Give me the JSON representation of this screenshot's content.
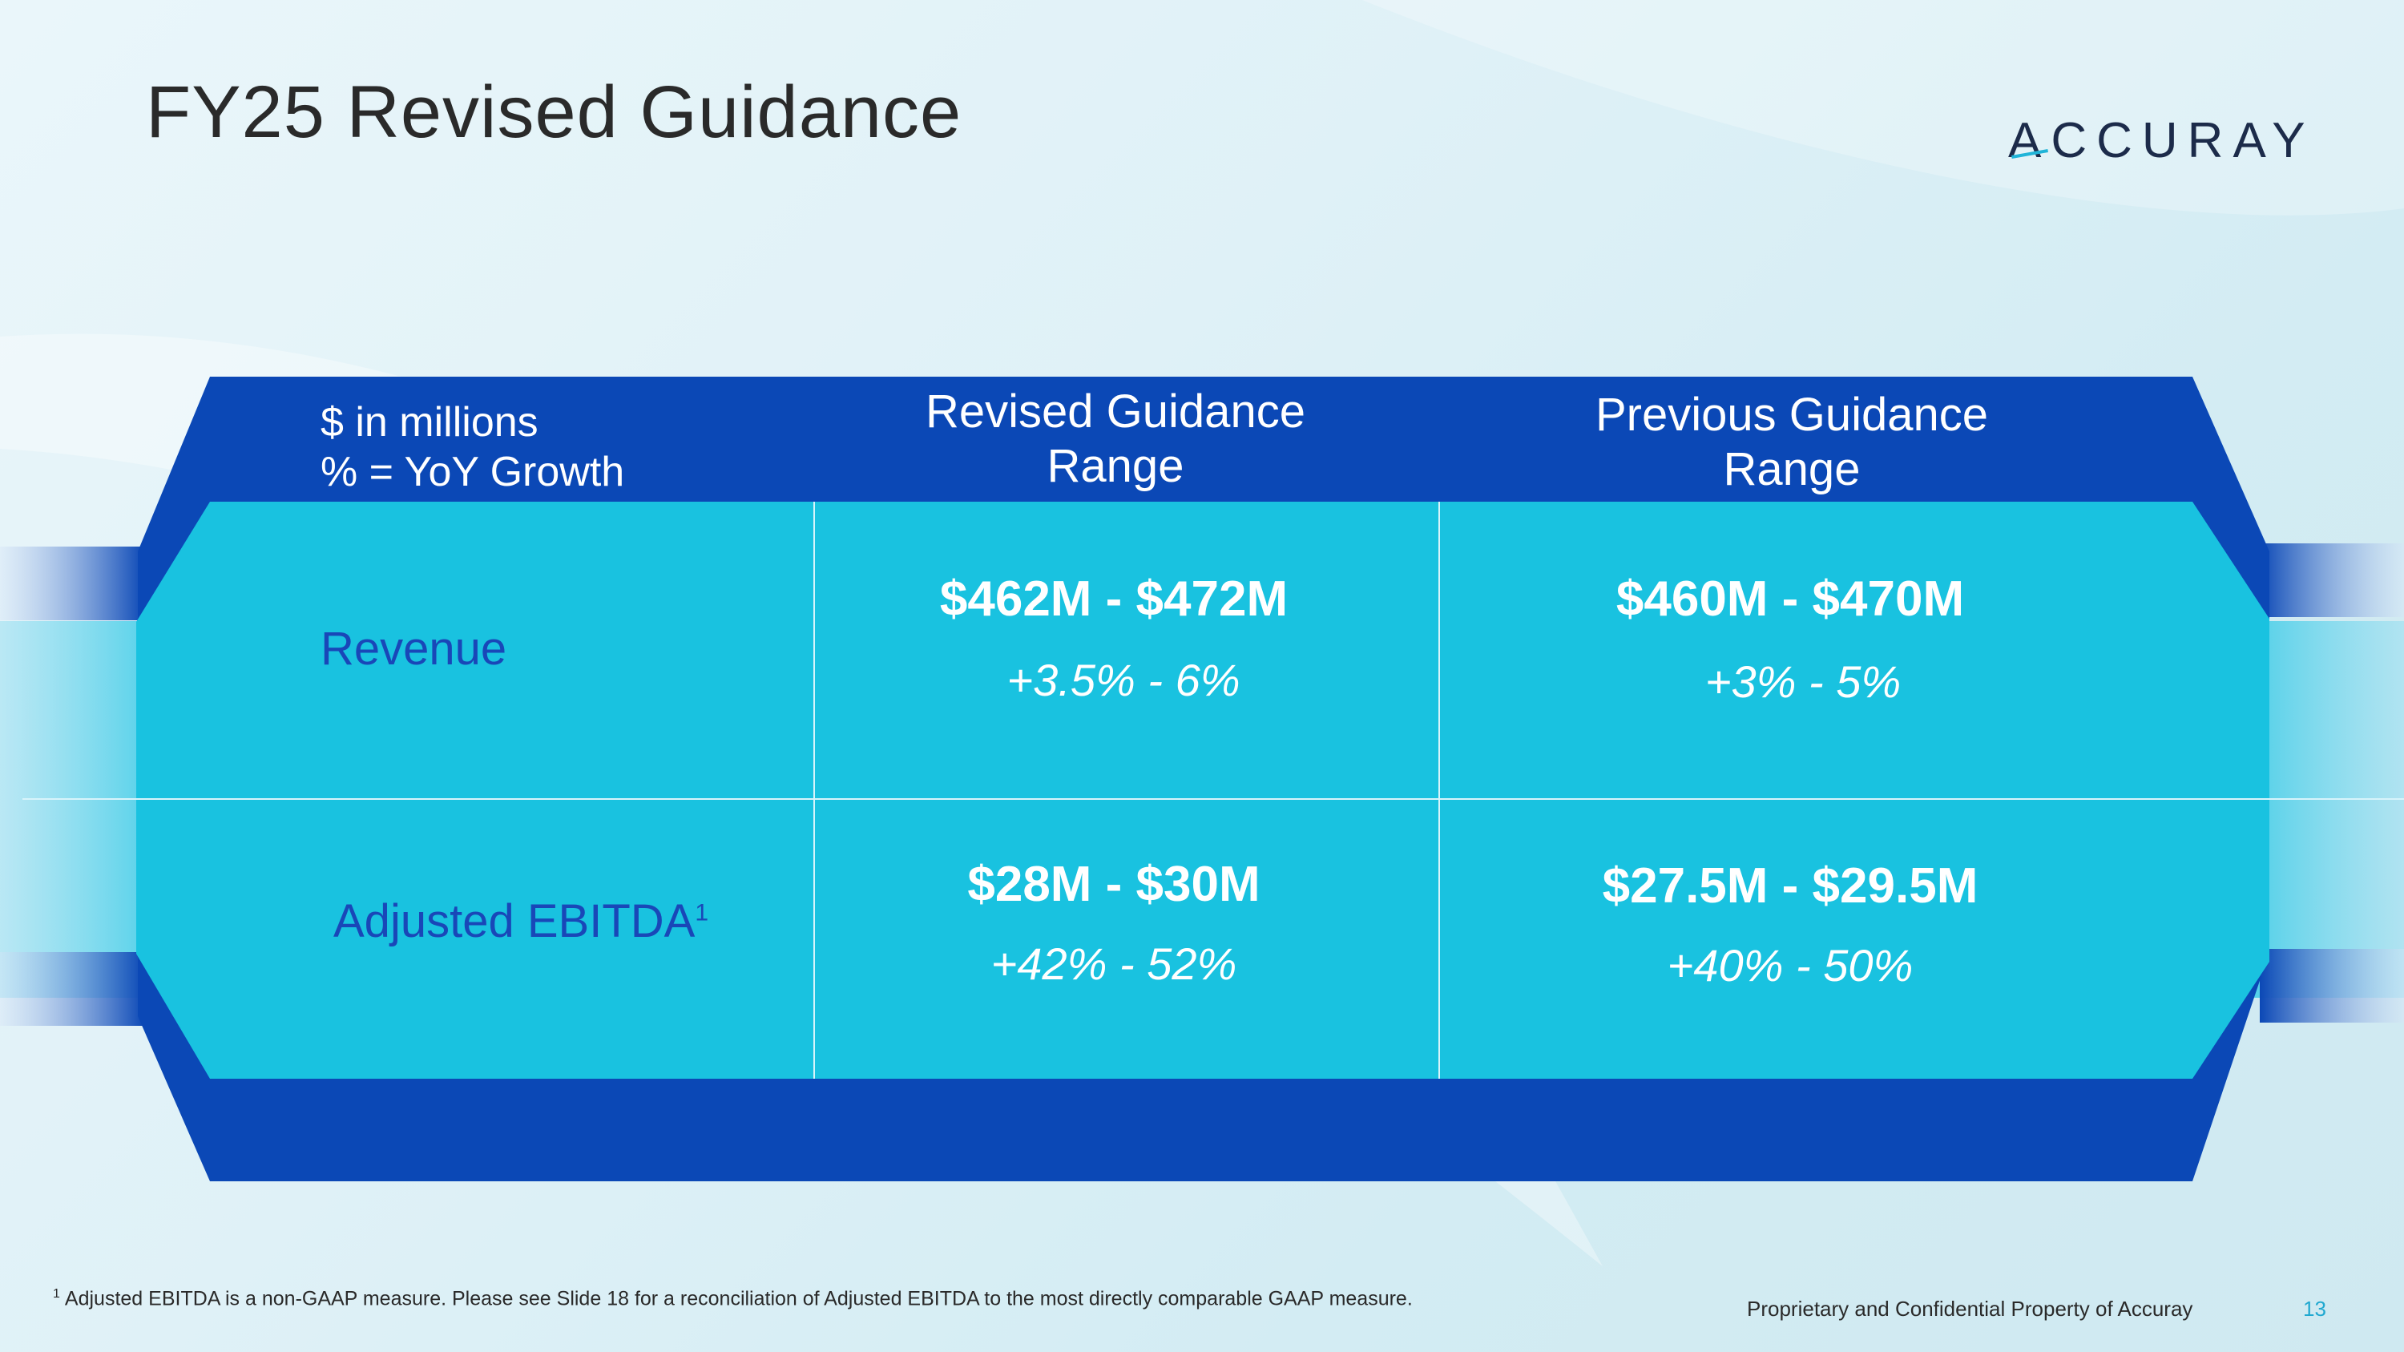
{
  "slide": {
    "title": "FY25 Revised Guidance",
    "logo_text": "ACCURAY",
    "page_number": "13",
    "footer": "Proprietary and Confidential Property of Accuray",
    "footnote_marker": "1",
    "footnote": "Adjusted EBITDA is a non-GAAP measure.  Please see Slide 18 for a reconciliation of Adjusted EBITDA to the most directly comparable GAAP measure."
  },
  "table": {
    "units_line1": "$ in millions",
    "units_line2": "% = YoY Growth",
    "columns": [
      {
        "line1": "Revised Guidance",
        "line2": "Range"
      },
      {
        "line1": "Previous Guidance",
        "line2": "Range"
      }
    ],
    "rows": [
      {
        "label": "Revenue",
        "label_sup": "",
        "revised_value": "$462M - $472M",
        "revised_growth": "+3.5% - 6%",
        "previous_value": "$460M - $470M",
        "previous_growth": "+3% - 5%"
      },
      {
        "label": "Adjusted EBITDA",
        "label_sup": "1",
        "revised_value": "$28M - $30M",
        "revised_growth": "+42% - 52%",
        "previous_value": "$27.5M - $29.5M",
        "previous_growth": "+40% - 50%"
      }
    ]
  },
  "colors": {
    "dark_blue": "#0b48b6",
    "cyan": "#19c2e0",
    "label_blue": "#1947b8",
    "accent": "#20b4d8"
  }
}
